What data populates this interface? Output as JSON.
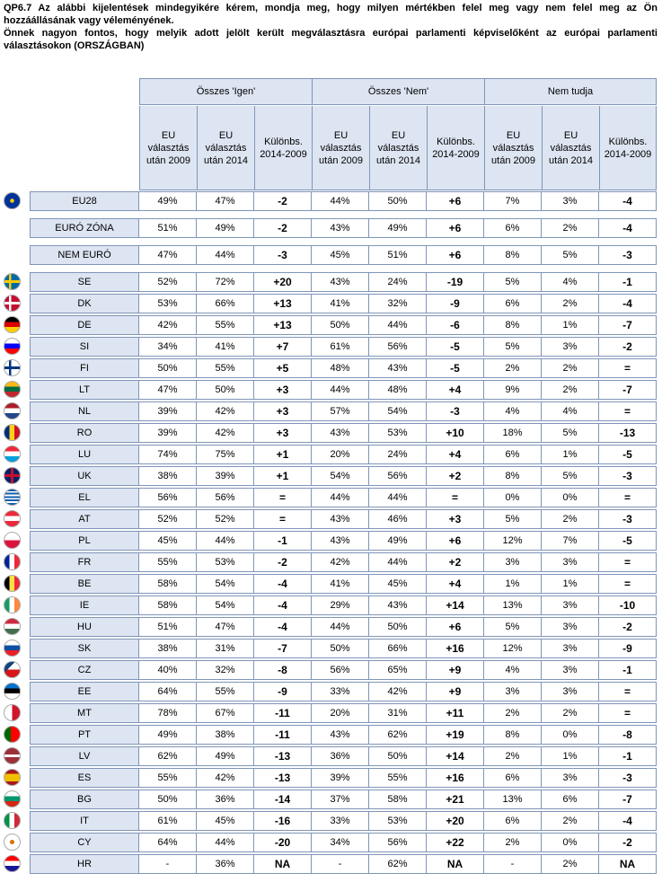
{
  "question": {
    "line1": "QP6.7 Az alábbi kijelentések mindegyikére kérem, mondja meg, hogy milyen mértékben felel meg vagy nem felel meg az Ön hozzáállásának vagy véleményének.",
    "line2": "Önnek nagyon fontos, hogy melyik adott jelölt került megválasztásra európai parlamenti képviselőként az európai parlamenti választásokon (ORSZÁGBAN)"
  },
  "groups": [
    "Összes 'Igen'",
    "Összes 'Nem'",
    "Nem tudja"
  ],
  "subheaders": [
    "EU választás után 2009",
    "EU választás után 2014",
    "Különbs. 2014-2009"
  ],
  "rows": [
    {
      "name": "EU28",
      "v": [
        "49%",
        "47%",
        "-2",
        "44%",
        "50%",
        "+6",
        "7%",
        "3%",
        "-4"
      ]
    },
    {
      "name": "EURÓ ZÓNA",
      "v": [
        "51%",
        "49%",
        "-2",
        "43%",
        "49%",
        "+6",
        "6%",
        "2%",
        "-4"
      ]
    },
    {
      "name": "NEM EURÓ",
      "v": [
        "47%",
        "44%",
        "-3",
        "45%",
        "51%",
        "+6",
        "8%",
        "5%",
        "-3"
      ]
    },
    {
      "name": "SE",
      "v": [
        "52%",
        "72%",
        "+20",
        "43%",
        "24%",
        "-19",
        "5%",
        "4%",
        "-1"
      ]
    },
    {
      "name": "DK",
      "v": [
        "53%",
        "66%",
        "+13",
        "41%",
        "32%",
        "-9",
        "6%",
        "2%",
        "-4"
      ]
    },
    {
      "name": "DE",
      "v": [
        "42%",
        "55%",
        "+13",
        "50%",
        "44%",
        "-6",
        "8%",
        "1%",
        "-7"
      ]
    },
    {
      "name": "SI",
      "v": [
        "34%",
        "41%",
        "+7",
        "61%",
        "56%",
        "-5",
        "5%",
        "3%",
        "-2"
      ]
    },
    {
      "name": "FI",
      "v": [
        "50%",
        "55%",
        "+5",
        "48%",
        "43%",
        "-5",
        "2%",
        "2%",
        "="
      ]
    },
    {
      "name": "LT",
      "v": [
        "47%",
        "50%",
        "+3",
        "44%",
        "48%",
        "+4",
        "9%",
        "2%",
        "-7"
      ]
    },
    {
      "name": "NL",
      "v": [
        "39%",
        "42%",
        "+3",
        "57%",
        "54%",
        "-3",
        "4%",
        "4%",
        "="
      ]
    },
    {
      "name": "RO",
      "v": [
        "39%",
        "42%",
        "+3",
        "43%",
        "53%",
        "+10",
        "18%",
        "5%",
        "-13"
      ]
    },
    {
      "name": "LU",
      "v": [
        "74%",
        "75%",
        "+1",
        "20%",
        "24%",
        "+4",
        "6%",
        "1%",
        "-5"
      ]
    },
    {
      "name": "UK",
      "v": [
        "38%",
        "39%",
        "+1",
        "54%",
        "56%",
        "+2",
        "8%",
        "5%",
        "-3"
      ]
    },
    {
      "name": "EL",
      "v": [
        "56%",
        "56%",
        "=",
        "44%",
        "44%",
        "=",
        "0%",
        "0%",
        "="
      ]
    },
    {
      "name": "AT",
      "v": [
        "52%",
        "52%",
        "=",
        "43%",
        "46%",
        "+3",
        "5%",
        "2%",
        "-3"
      ]
    },
    {
      "name": "PL",
      "v": [
        "45%",
        "44%",
        "-1",
        "43%",
        "49%",
        "+6",
        "12%",
        "7%",
        "-5"
      ]
    },
    {
      "name": "FR",
      "v": [
        "55%",
        "53%",
        "-2",
        "42%",
        "44%",
        "+2",
        "3%",
        "3%",
        "="
      ]
    },
    {
      "name": "BE",
      "v": [
        "58%",
        "54%",
        "-4",
        "41%",
        "45%",
        "+4",
        "1%",
        "1%",
        "="
      ]
    },
    {
      "name": "IE",
      "v": [
        "58%",
        "54%",
        "-4",
        "29%",
        "43%",
        "+14",
        "13%",
        "3%",
        "-10"
      ]
    },
    {
      "name": "HU",
      "v": [
        "51%",
        "47%",
        "-4",
        "44%",
        "50%",
        "+6",
        "5%",
        "3%",
        "-2"
      ]
    },
    {
      "name": "SK",
      "v": [
        "38%",
        "31%",
        "-7",
        "50%",
        "66%",
        "+16",
        "12%",
        "3%",
        "-9"
      ]
    },
    {
      "name": "CZ",
      "v": [
        "40%",
        "32%",
        "-8",
        "56%",
        "65%",
        "+9",
        "4%",
        "3%",
        "-1"
      ]
    },
    {
      "name": "EE",
      "v": [
        "64%",
        "55%",
        "-9",
        "33%",
        "42%",
        "+9",
        "3%",
        "3%",
        "="
      ]
    },
    {
      "name": "MT",
      "v": [
        "78%",
        "67%",
        "-11",
        "20%",
        "31%",
        "+11",
        "2%",
        "2%",
        "="
      ]
    },
    {
      "name": "PT",
      "v": [
        "49%",
        "38%",
        "-11",
        "43%",
        "62%",
        "+19",
        "8%",
        "0%",
        "-8"
      ]
    },
    {
      "name": "LV",
      "v": [
        "62%",
        "49%",
        "-13",
        "36%",
        "50%",
        "+14",
        "2%",
        "1%",
        "-1"
      ]
    },
    {
      "name": "ES",
      "v": [
        "55%",
        "42%",
        "-13",
        "39%",
        "55%",
        "+16",
        "6%",
        "3%",
        "-3"
      ]
    },
    {
      "name": "BG",
      "v": [
        "50%",
        "36%",
        "-14",
        "37%",
        "58%",
        "+21",
        "13%",
        "6%",
        "-7"
      ]
    },
    {
      "name": "IT",
      "v": [
        "61%",
        "45%",
        "-16",
        "33%",
        "53%",
        "+20",
        "6%",
        "2%",
        "-4"
      ]
    },
    {
      "name": "CY",
      "v": [
        "64%",
        "44%",
        "-20",
        "34%",
        "56%",
        "+22",
        "2%",
        "0%",
        "-2"
      ]
    },
    {
      "name": "HR",
      "v": [
        "-",
        "36%",
        "NA",
        "-",
        "62%",
        "NA",
        "-",
        "2%",
        "NA"
      ]
    }
  ],
  "flags": {
    "EU28": "eu",
    "SE": "se",
    "DK": "dk",
    "DE": "de",
    "SI": "si",
    "FI": "fi",
    "LT": "lt",
    "NL": "nl",
    "RO": "ro",
    "LU": "lu",
    "UK": "uk",
    "EL": "el",
    "AT": "at",
    "PL": "pl",
    "FR": "fr",
    "BE": "be",
    "IE": "ie",
    "HU": "hu",
    "SK": "sk",
    "CZ": "cz",
    "EE": "ee",
    "MT": "mt",
    "PT": "pt",
    "LV": "lv",
    "ES": "es",
    "BG": "bg",
    "IT": "it",
    "CY": "cy",
    "HR": "hr"
  },
  "colors": {
    "header_bg": "#DDE5F2",
    "border": "#7F95B8"
  }
}
